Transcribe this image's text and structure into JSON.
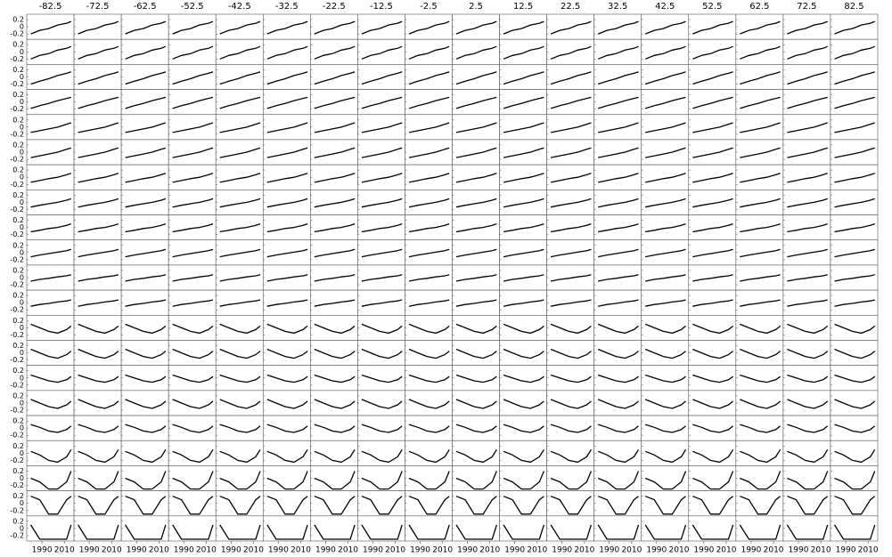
{
  "chart_data": {
    "type": "line",
    "column_headers": [
      -82.5,
      -72.5,
      -62.5,
      -52.5,
      -42.5,
      -32.5,
      -22.5,
      -12.5,
      -2.5,
      2.5,
      12.5,
      22.5,
      32.5,
      42.5,
      52.5,
      62.5,
      72.5,
      82.5
    ],
    "x": [
      1980,
      1988,
      1996,
      2004,
      2012,
      2016
    ],
    "xlim": [
      1978,
      2017
    ],
    "xticks": [
      1990,
      2010
    ],
    "ylim": [
      -0.35,
      0.35
    ],
    "yticks": [
      0.2,
      0,
      -0.2
    ],
    "series": [
      {
        "color": "#000000",
        "values": [
          -0.2,
          -0.1,
          -0.05,
          0.05,
          0.1,
          0.15
        ]
      },
      {
        "color": "#000000",
        "values": [
          -0.2,
          -0.1,
          -0.05,
          0.05,
          0.1,
          0.15
        ]
      },
      {
        "color": "#000000",
        "values": [
          -0.2,
          -0.12,
          -0.05,
          0.04,
          0.1,
          0.14
        ]
      },
      {
        "color": "#000000",
        "values": [
          -0.18,
          -0.1,
          -0.04,
          0.04,
          0.1,
          0.13
        ]
      },
      {
        "color": "#000000",
        "values": [
          -0.15,
          -0.1,
          -0.05,
          0,
          0.08,
          0.12
        ]
      },
      {
        "color": "#000000",
        "values": [
          -0.15,
          -0.1,
          -0.05,
          0,
          0.08,
          0.12
        ]
      },
      {
        "color": "#000000",
        "values": [
          -0.14,
          -0.09,
          -0.04,
          0,
          0.07,
          0.11
        ]
      },
      {
        "color": "#000000",
        "values": [
          -0.13,
          -0.08,
          -0.04,
          0,
          0.06,
          0.1
        ]
      },
      {
        "color": "#000000",
        "values": [
          -0.12,
          -0.08,
          -0.03,
          0,
          0.06,
          0.1
        ]
      },
      {
        "color": "#000000",
        "values": [
          -0.12,
          -0.07,
          -0.03,
          0.01,
          0.05,
          0.09
        ]
      },
      {
        "color": "#000000",
        "values": [
          -0.1,
          -0.05,
          -0.02,
          0.02,
          0.05,
          0.08
        ]
      },
      {
        "color": "#000000",
        "values": [
          -0.1,
          -0.05,
          -0.02,
          0.02,
          0.05,
          0.08
        ]
      },
      {
        "color": "#000000",
        "values": [
          0.1,
          0,
          -0.1,
          -0.15,
          -0.05,
          0.05
        ]
      },
      {
        "color": "#000000",
        "values": [
          0.1,
          0,
          -0.1,
          -0.15,
          -0.05,
          0.05
        ]
      },
      {
        "color": "#000000",
        "values": [
          0.08,
          0,
          -0.08,
          -0.12,
          -0.05,
          0.04
        ]
      },
      {
        "color": "#000000",
        "values": [
          0.1,
          0,
          -0.1,
          -0.15,
          -0.05,
          0.05
        ]
      },
      {
        "color": "#000000",
        "values": [
          0.1,
          0.02,
          -0.08,
          -0.12,
          -0.04,
          0.06
        ]
      },
      {
        "color": "#000000",
        "values": [
          0.05,
          -0.05,
          -0.2,
          -0.25,
          -0.1,
          0.1
        ]
      },
      {
        "color": "#000000",
        "values": [
          0,
          -0.1,
          -0.3,
          -0.3,
          -0.1,
          0.2
        ]
      },
      {
        "color": "#000000",
        "values": [
          0.2,
          0.1,
          -0.3,
          -0.3,
          0.1,
          0.2
        ]
      },
      {
        "color": "#000000",
        "values": [
          0.1,
          -0.3,
          -0.3,
          -0.3,
          -0.3,
          0.1
        ]
      }
    ]
  }
}
